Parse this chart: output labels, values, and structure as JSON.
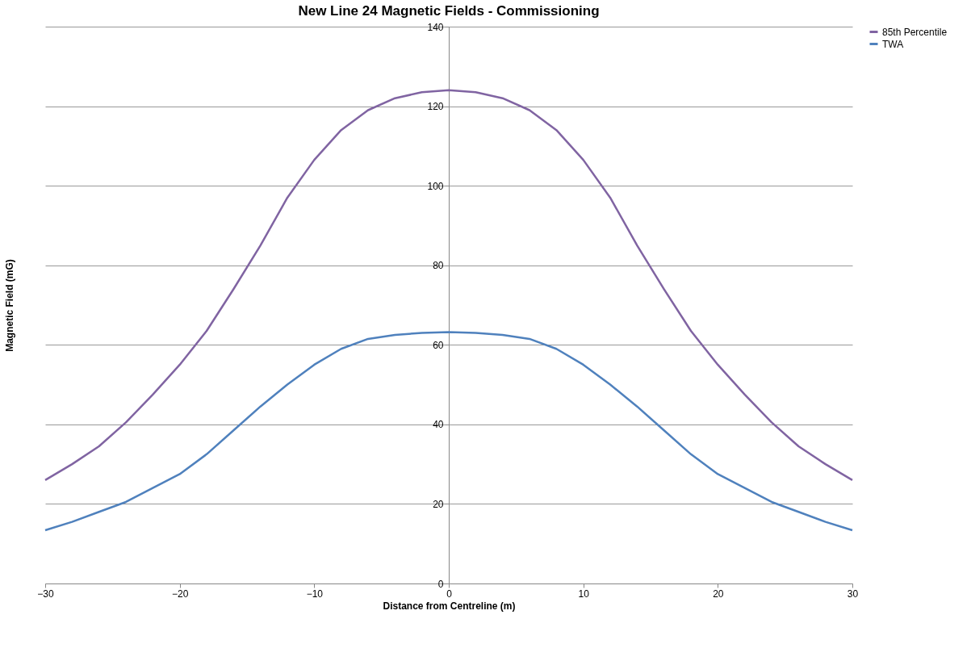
{
  "chart_data": {
    "type": "line",
    "title": "New Line 24 Magnetic Fields - Commissioning",
    "xlabel": "Distance  from Centreline (m)",
    "ylabel": "Magnetic Field (mG)",
    "x": [
      -30,
      -28,
      -26,
      -24,
      -22,
      -20,
      -18,
      -16,
      -14,
      -12,
      -10,
      -8,
      -6,
      -4,
      -2,
      0,
      2,
      4,
      6,
      8,
      10,
      12,
      14,
      16,
      18,
      20,
      22,
      24,
      26,
      28,
      30
    ],
    "series": [
      {
        "name": "85th Percentile",
        "color": "#8064a2",
        "values": [
          26,
          30,
          34.5,
          40.5,
          47.5,
          55,
          63.5,
          74,
          85,
          97,
          106.5,
          114,
          119,
          122,
          123.5,
          124,
          123.5,
          122,
          119,
          114,
          106.5,
          97,
          85,
          74,
          63.5,
          55,
          47.5,
          40.5,
          34.5,
          30,
          26
        ]
      },
      {
        "name": "TWA",
        "color": "#4f81bd",
        "values": [
          13.4,
          15.5,
          18,
          20.5,
          24,
          27.5,
          32.5,
          38.5,
          44.5,
          50,
          55,
          59,
          61.5,
          62.5,
          63,
          63.2,
          63,
          62.5,
          61.5,
          59,
          55,
          50,
          44.5,
          38.5,
          32.5,
          27.5,
          24,
          20.5,
          18,
          15.5,
          13.4
        ]
      }
    ],
    "xlim": [
      -30,
      30
    ],
    "xticks": [
      -30,
      -20,
      -10,
      0,
      10,
      20,
      30
    ],
    "ylim": [
      0,
      140
    ],
    "yticks": [
      0,
      20,
      40,
      60,
      80,
      100,
      120,
      140
    ],
    "grid": "y",
    "legend": "right",
    "marker": "none",
    "line_style": "solid"
  }
}
